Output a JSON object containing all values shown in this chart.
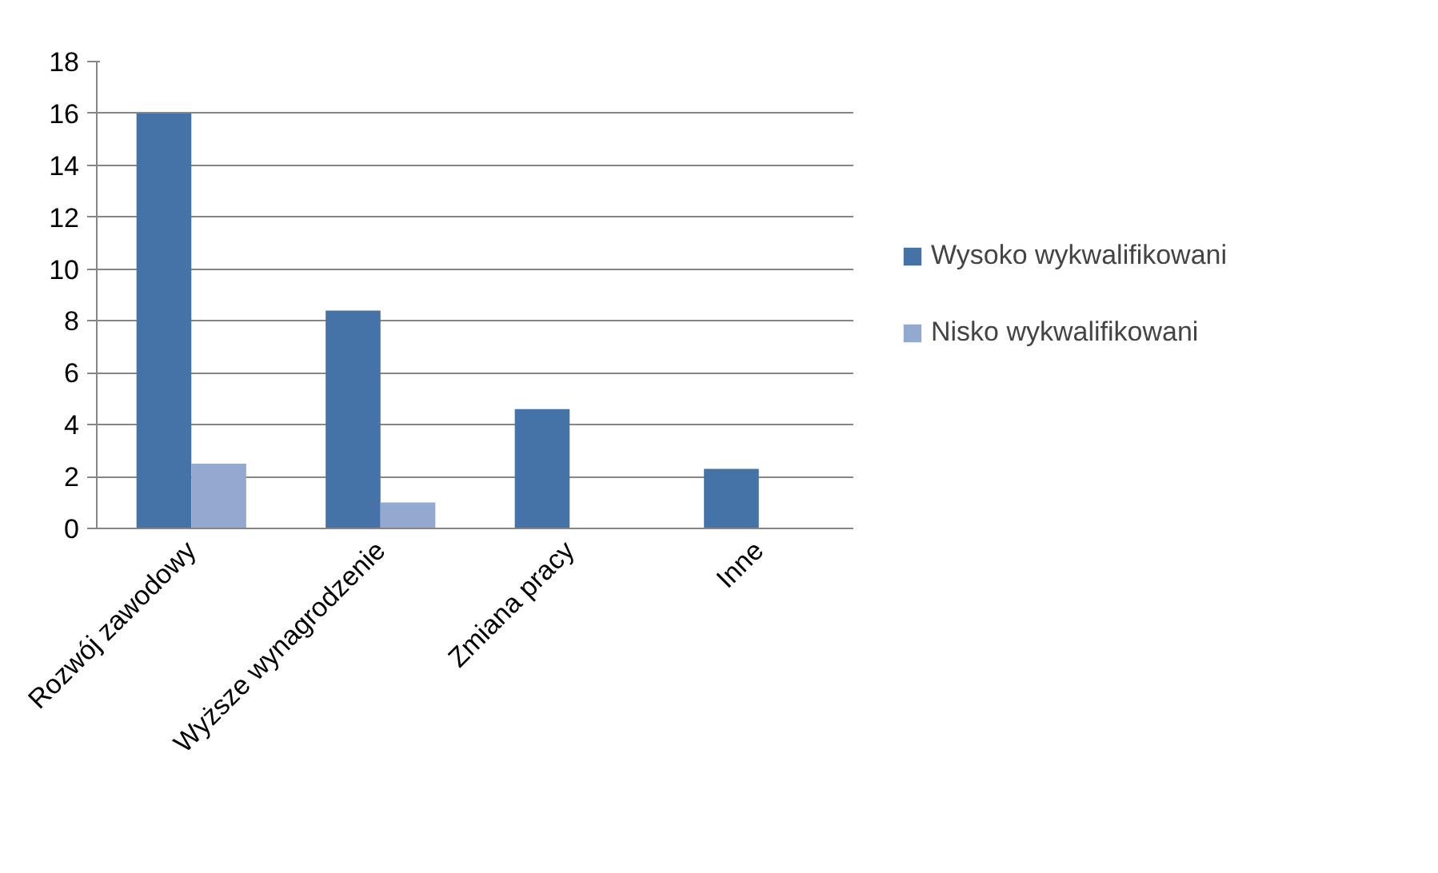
{
  "chart_data": {
    "type": "bar",
    "categories": [
      "Rozwój zawodowy",
      "Wyższe wynagrodzenie",
      "Zmiana pracy",
      "Inne"
    ],
    "series": [
      {
        "name": "Wysoko wykwalifikowani",
        "color": "#4572a7",
        "values": [
          16,
          8.4,
          4.6,
          2.3
        ]
      },
      {
        "name": "Nisko wykwalifikowani",
        "color": "#93a9d0",
        "values": [
          2.5,
          1,
          null,
          null
        ]
      }
    ],
    "ylim": [
      0,
      18
    ],
    "yticks": [
      0,
      2,
      4,
      6,
      8,
      10,
      12,
      14,
      16,
      18
    ],
    "grid": "y",
    "legend": "right"
  }
}
